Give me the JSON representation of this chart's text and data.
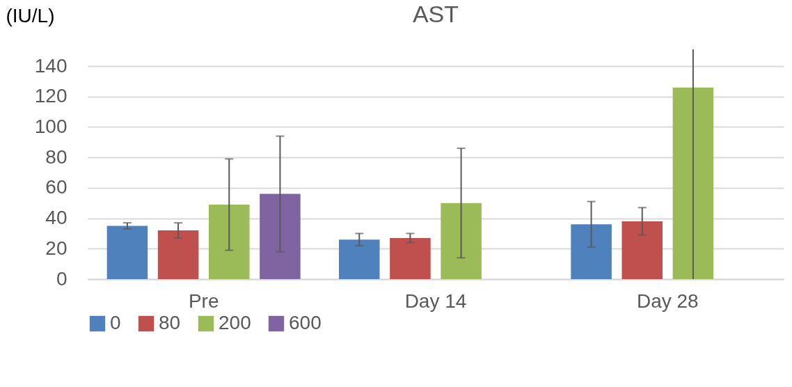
{
  "chart_data": {
    "type": "bar",
    "title": "AST",
    "ylabel": "(IU/L)",
    "categories": [
      "Pre",
      "Day 14",
      "Day 28"
    ],
    "series": [
      {
        "name": "0",
        "color": "#4f81bd",
        "values": [
          35,
          26,
          36
        ],
        "errors": [
          [
            33,
            37
          ],
          [
            22,
            30
          ],
          [
            21,
            51
          ]
        ]
      },
      {
        "name": "80",
        "color": "#c0504d",
        "values": [
          32,
          27,
          38
        ],
        "errors": [
          [
            27,
            37
          ],
          [
            24,
            30
          ],
          [
            29,
            47
          ]
        ]
      },
      {
        "name": "200",
        "color": "#9bbb59",
        "values": [
          49,
          50,
          126
        ],
        "errors": [
          [
            19,
            79
          ],
          [
            14,
            86
          ],
          [
            0,
            151
          ]
        ]
      },
      {
        "name": "600",
        "color": "#8064a2",
        "values": [
          56,
          null,
          null
        ],
        "errors": [
          [
            18,
            94
          ],
          null,
          null
        ]
      }
    ],
    "ylim": [
      0,
      151
    ],
    "yticks": [
      0,
      20,
      40,
      60,
      80,
      100,
      120,
      140
    ],
    "grid": "y",
    "legend": "bottom"
  }
}
